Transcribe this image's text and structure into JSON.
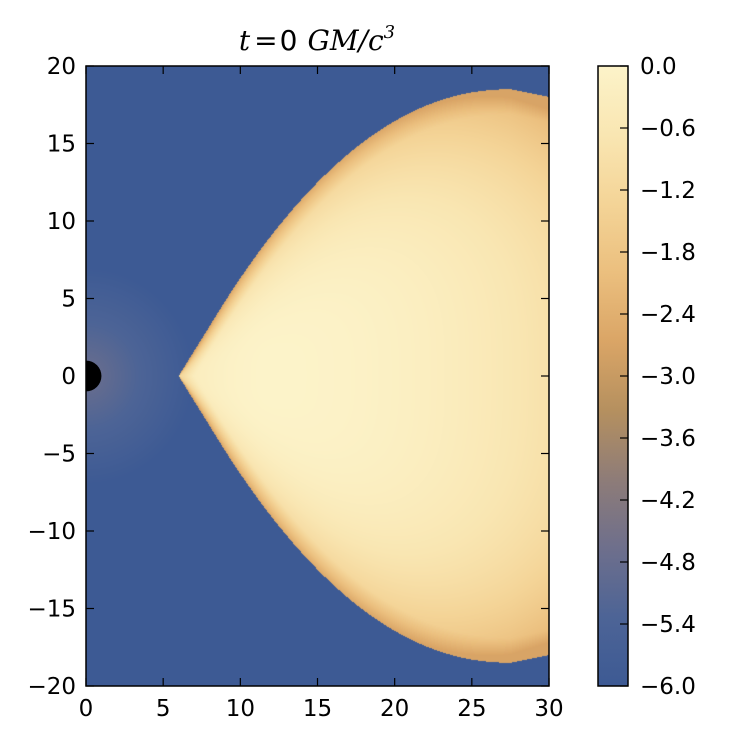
{
  "chart_data": {
    "type": "heatmap",
    "title": {
      "lhs": "t",
      "eq": "=",
      "value": "0",
      "units": "GM/c",
      "units_exp": "3"
    },
    "xlabel": "",
    "ylabel": "",
    "xlim": [
      0,
      30
    ],
    "ylim": [
      -20,
      20
    ],
    "x_ticks": [
      0,
      5,
      10,
      15,
      20,
      25,
      30
    ],
    "y_ticks": [
      20,
      15,
      10,
      5,
      0,
      -5,
      -10,
      -15,
      -20
    ],
    "x_tick_labels": [
      "0",
      "5",
      "10",
      "15",
      "20",
      "25",
      "30"
    ],
    "y_tick_labels": [
      "20",
      "15",
      "10",
      "5",
      "0",
      "−5",
      "−10",
      "−15",
      "−20"
    ],
    "colorbar": {
      "min": -6.0,
      "max": 0.0,
      "ticks": [
        0.0,
        -0.6,
        -1.2,
        -1.8,
        -2.4,
        -3.0,
        -3.6,
        -4.2,
        -4.8,
        -5.4,
        -6.0
      ],
      "tick_labels": [
        "0.0",
        "−0.6",
        "−1.2",
        "−1.8",
        "−2.4",
        "−3.0",
        "−3.6",
        "−4.2",
        "−4.8",
        "−5.4",
        "−6.0"
      ],
      "colormap": [
        "#3d5a94",
        "#4d6496",
        "#6e6f8c",
        "#8e7c78",
        "#b5905f",
        "#daa566",
        "#ebbf7e",
        "#f4d497",
        "#f9e6b2",
        "#fcf3c9"
      ]
    },
    "background_value": -6.0,
    "torus": {
      "inner_edge_x": 6,
      "peak_value": 0.0,
      "outer_edge_value": -2.4,
      "max_height_y": 18.5,
      "description_note": ""
    },
    "black_hole": {
      "center_x": 0,
      "center_y": 0,
      "radius": 1,
      "color": "#000000"
    },
    "grid": false
  }
}
